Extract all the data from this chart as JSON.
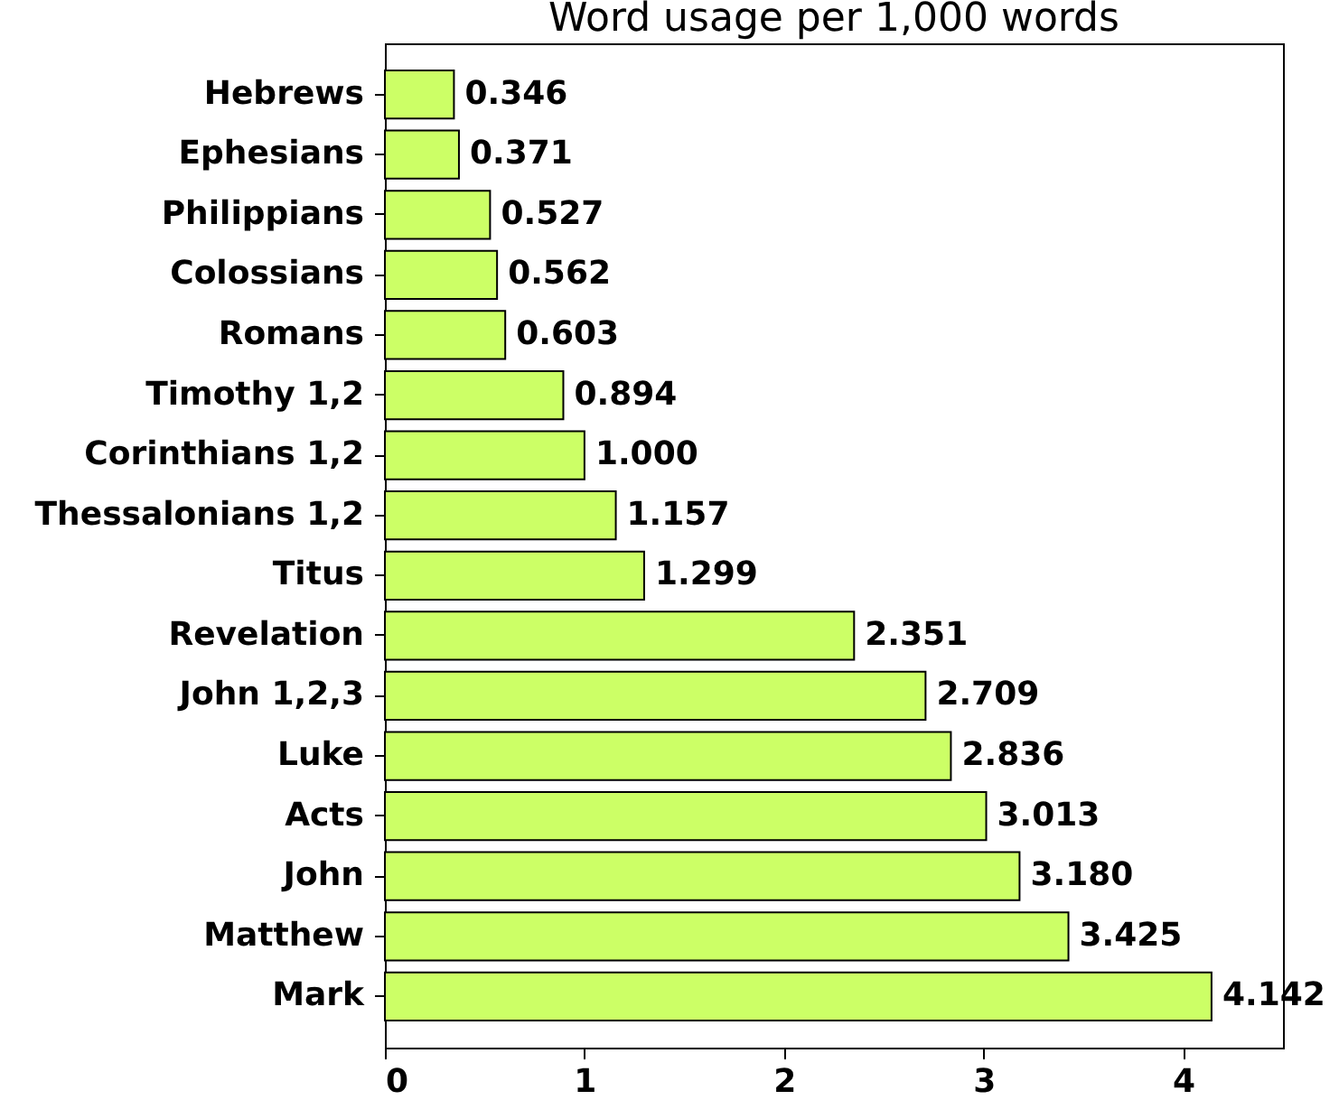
{
  "chart_data": {
    "type": "bar",
    "orientation": "horizontal",
    "title": "Word usage per 1,000 words",
    "categories": [
      "Hebrews",
      "Ephesians",
      "Philippians",
      "Colossians",
      "Romans",
      "Timothy 1,2",
      "Corinthians 1,2",
      "Thessalonians 1,2",
      "Titus",
      "Revelation",
      "John 1,2,3",
      "Luke",
      "Acts",
      "John",
      "Matthew",
      "Mark"
    ],
    "values": [
      0.346,
      0.371,
      0.527,
      0.562,
      0.603,
      0.894,
      1.0,
      1.157,
      1.299,
      2.351,
      2.709,
      2.836,
      3.013,
      3.18,
      3.425,
      4.142
    ],
    "value_labels": [
      "0.346",
      "0.371",
      "0.527",
      "0.562",
      "0.603",
      "0.894",
      "1.000",
      "1.157",
      "1.299",
      "2.351",
      "2.709",
      "2.836",
      "3.013",
      "3.180",
      "3.425",
      "4.142"
    ],
    "color": "#ccff66",
    "xlim": [
      0,
      4.5
    ],
    "xticks": [
      0,
      1,
      2,
      3,
      4
    ],
    "grid": false
  }
}
